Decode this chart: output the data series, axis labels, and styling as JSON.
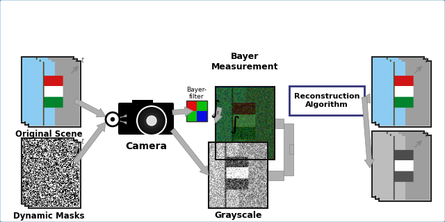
{
  "border_color": "#5599bb",
  "labels": {
    "original_scene": "Original Scene",
    "dynamic_masks": "Dynamic Masks",
    "camera": "Camera",
    "bayer_measurement": "Bayer\nMeasurement",
    "grayscale_measurement": "Grayscale\nMeasurement",
    "reconstruction": "Reconstruction\nAlgorithm",
    "bayer_filter": "Bayer-\nfilter"
  },
  "arrow_color": "#b0b0b0",
  "font_size_label": 9,
  "font_size_small": 7
}
